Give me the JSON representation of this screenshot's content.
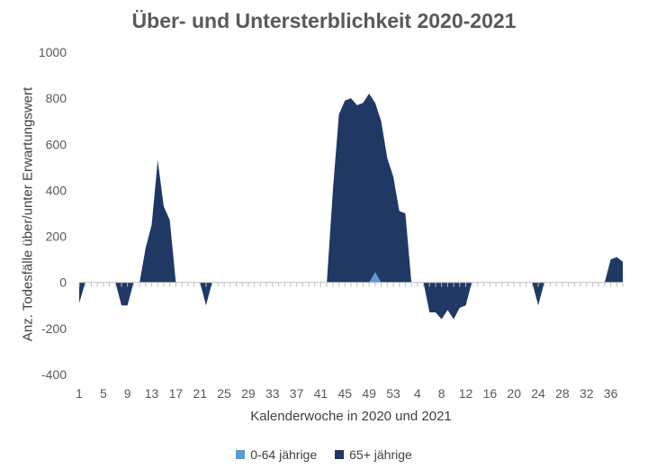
{
  "chart_data": {
    "type": "area",
    "title": "Über- und Untersterblichkeit 2020-2021",
    "xlabel": "Kalenderwoche in 2020 und 2021",
    "ylabel": "Anz. Todesfälle über/unter Erwartungswert",
    "ylim": [
      -400,
      1000
    ],
    "yticks": [
      -400,
      -200,
      0,
      200,
      400,
      600,
      800,
      1000
    ],
    "xtick_labels": [
      "1",
      "5",
      "9",
      "13",
      "17",
      "21",
      "25",
      "29",
      "33",
      "37",
      "41",
      "45",
      "49",
      "53",
      "4",
      "8",
      "12",
      "16",
      "20",
      "24",
      "28",
      "32",
      "36"
    ],
    "x": [
      "1",
      "2",
      "3",
      "4",
      "5",
      "6",
      "7",
      "8",
      "9",
      "10",
      "11",
      "12",
      "13",
      "14",
      "15",
      "16",
      "17",
      "18",
      "19",
      "20",
      "21",
      "22",
      "23",
      "24",
      "25",
      "26",
      "27",
      "28",
      "29",
      "30",
      "31",
      "32",
      "33",
      "34",
      "35",
      "36",
      "37",
      "38",
      "39",
      "40",
      "41",
      "42",
      "43",
      "44",
      "45",
      "46",
      "47",
      "48",
      "49",
      "50",
      "51",
      "52",
      "53",
      "1",
      "2",
      "3",
      "4",
      "5",
      "6",
      "7",
      "8",
      "9",
      "10",
      "11",
      "12",
      "13",
      "14",
      "15",
      "16",
      "17",
      "18",
      "19",
      "20",
      "21",
      "22",
      "23",
      "24",
      "25",
      "26",
      "27",
      "28",
      "29",
      "30",
      "31",
      "32",
      "33",
      "34",
      "35",
      "36",
      "37",
      "38"
    ],
    "grid": false,
    "legend_position": "bottom",
    "series": [
      {
        "name": "0-64 jährige",
        "color": "#5b9bd5",
        "values": [
          0,
          0,
          0,
          0,
          0,
          0,
          0,
          0,
          0,
          0,
          0,
          0,
          0,
          0,
          0,
          0,
          0,
          0,
          0,
          0,
          0,
          0,
          0,
          0,
          0,
          0,
          0,
          0,
          0,
          0,
          0,
          0,
          0,
          0,
          0,
          0,
          0,
          0,
          0,
          0,
          0,
          0,
          0,
          0,
          0,
          0,
          0,
          0,
          0,
          45,
          0,
          0,
          0,
          0,
          0,
          0,
          0,
          0,
          0,
          0,
          0,
          0,
          0,
          0,
          0,
          0,
          0,
          0,
          0,
          0,
          0,
          0,
          0,
          0,
          0,
          0,
          0,
          0,
          0,
          0,
          0,
          0,
          0,
          0,
          0,
          0,
          0,
          0,
          0,
          0,
          0
        ]
      },
      {
        "name": "65+ jährige",
        "color": "#203864",
        "values": [
          -90,
          0,
          0,
          0,
          0,
          0,
          0,
          -100,
          -100,
          0,
          0,
          150,
          250,
          530,
          330,
          270,
          0,
          0,
          0,
          0,
          0,
          -100,
          0,
          0,
          0,
          0,
          0,
          0,
          0,
          0,
          0,
          0,
          0,
          0,
          0,
          0,
          0,
          0,
          0,
          0,
          0,
          0,
          400,
          730,
          790,
          800,
          770,
          780,
          820,
          780,
          700,
          540,
          460,
          310,
          300,
          0,
          0,
          0,
          -130,
          -130,
          -160,
          -120,
          -160,
          -110,
          -100,
          0,
          0,
          0,
          0,
          0,
          0,
          0,
          0,
          0,
          0,
          0,
          -100,
          0,
          0,
          0,
          0,
          0,
          0,
          0,
          0,
          0,
          0,
          0,
          100,
          110,
          90
        ]
      }
    ]
  }
}
